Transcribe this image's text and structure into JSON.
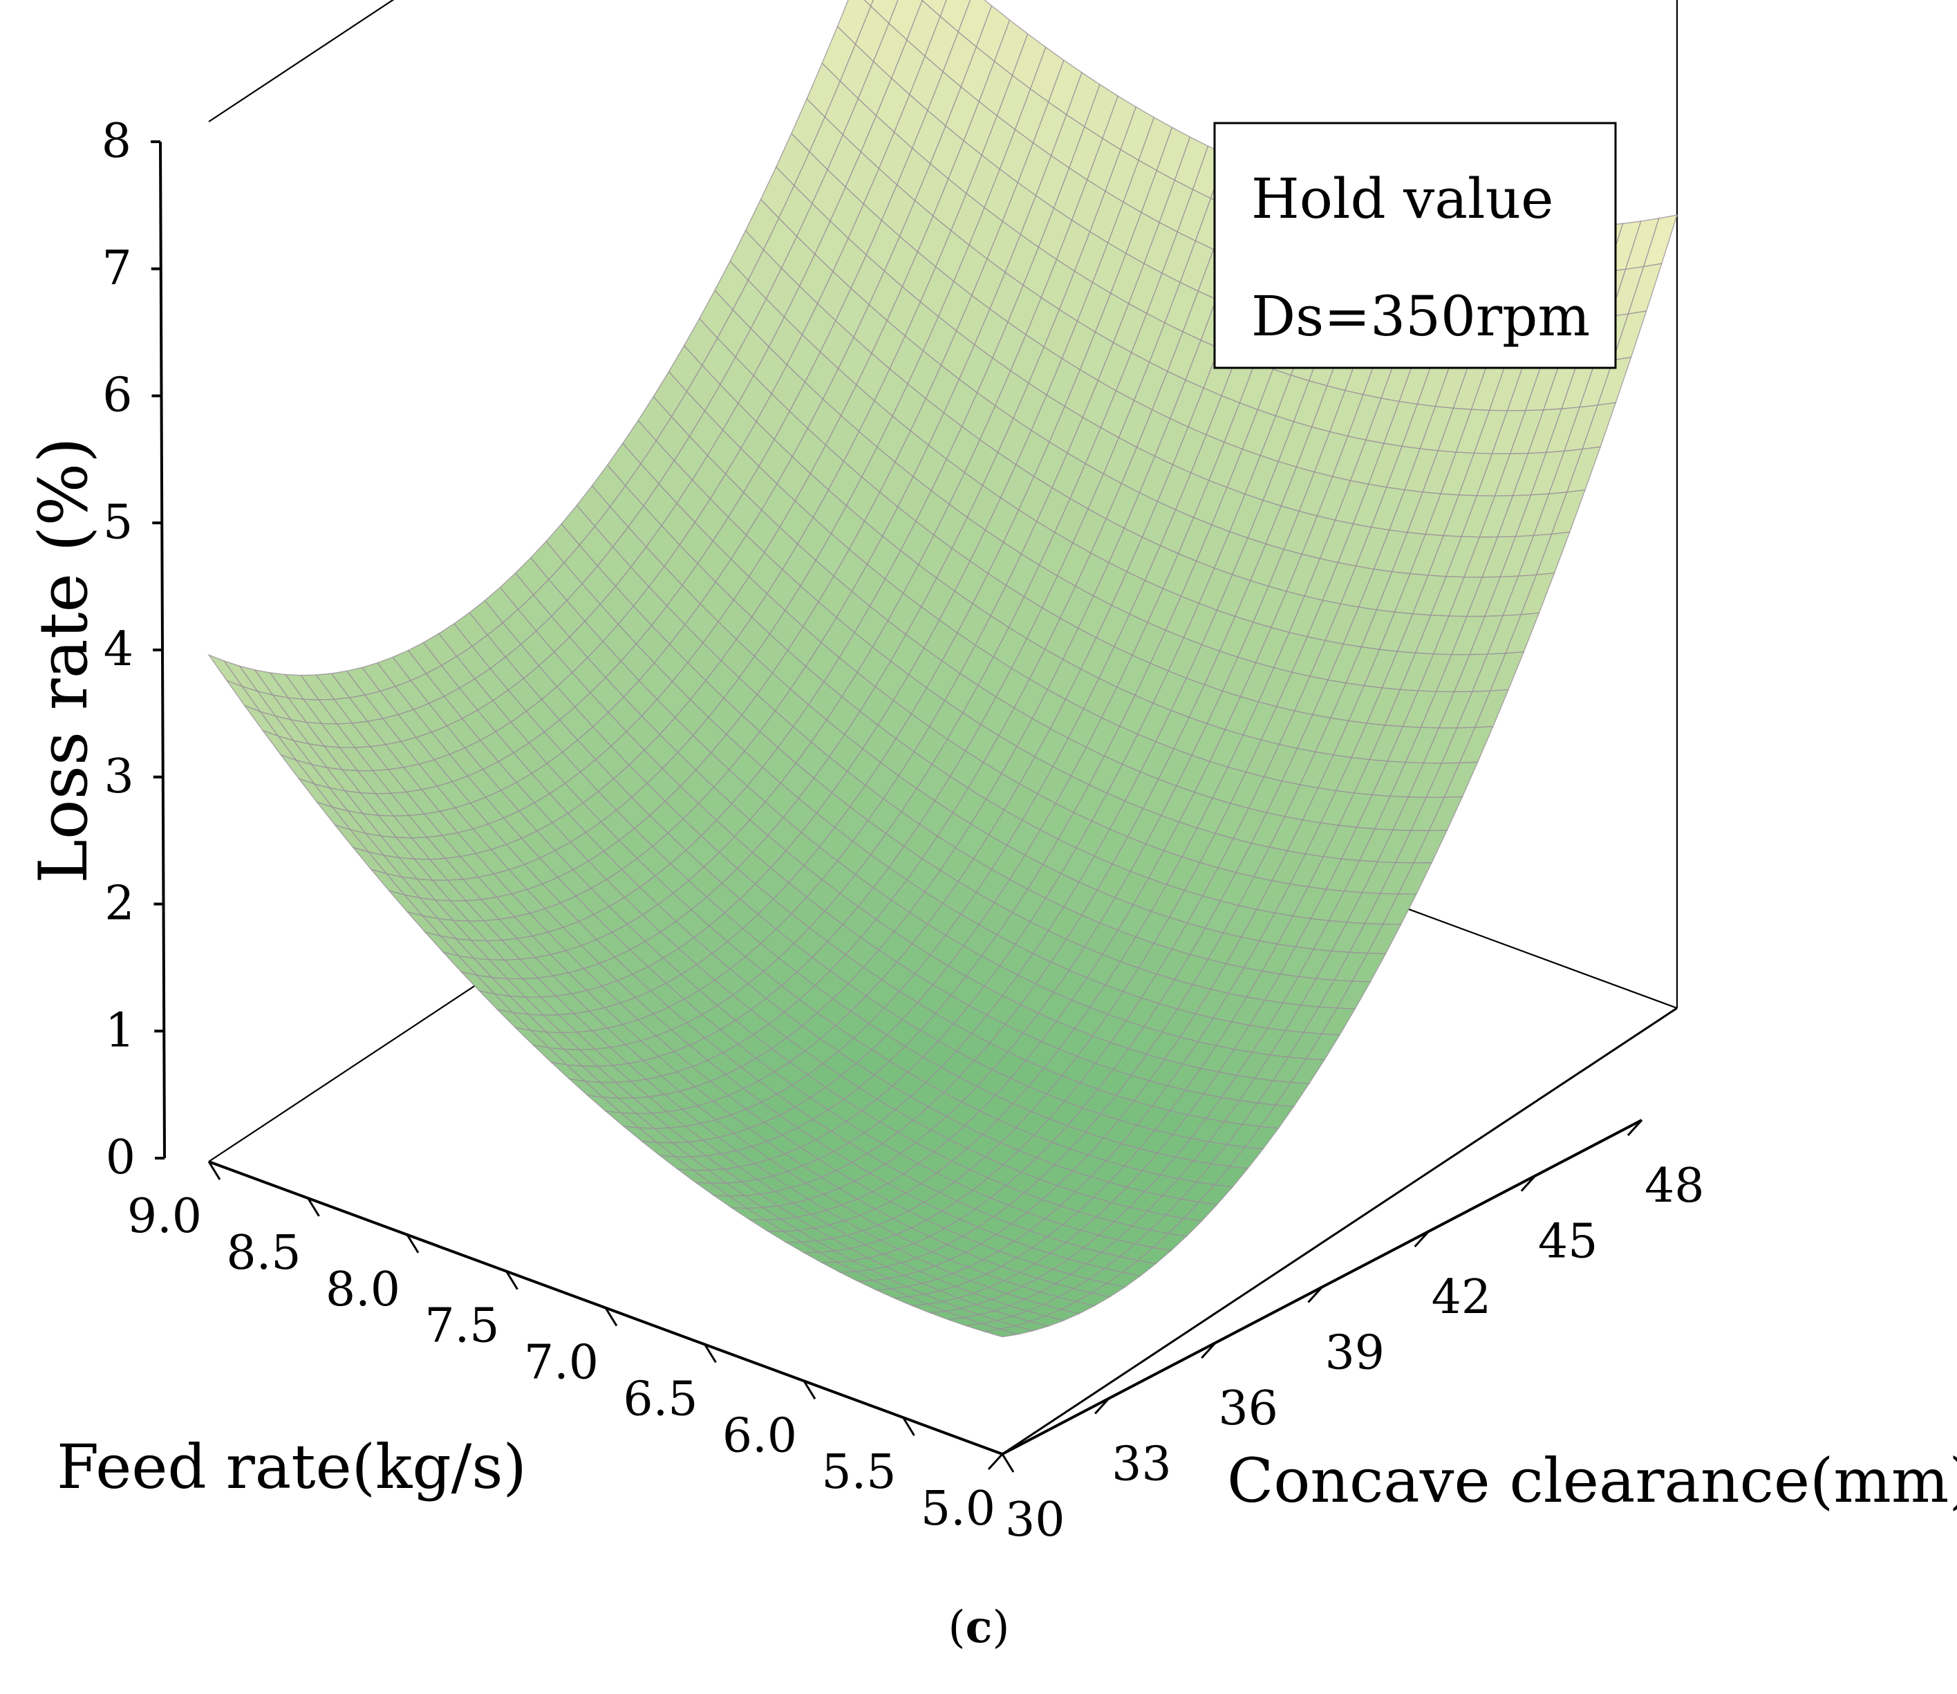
{
  "chart_data": {
    "type": "surface3d",
    "title": "",
    "legend": {
      "lines": [
        "Hold value",
        "Ds=350rpm"
      ],
      "placement": "top-right"
    },
    "caption": {
      "open": "(",
      "letter": "c",
      "close": ")"
    },
    "x_axis": {
      "label": "Feed rate(kg/s)",
      "ticks": [
        "9.0",
        "8.5",
        "8.0",
        "7.5",
        "7.0",
        "6.5",
        "6.0",
        "5.5",
        "5.0"
      ],
      "range": [
        5.0,
        9.0
      ]
    },
    "y_axis": {
      "label": "Concave clearance(mm)",
      "ticks": [
        "30",
        "33",
        "36",
        "39",
        "42",
        "45",
        "48"
      ],
      "range": [
        30,
        48
      ]
    },
    "z_axis": {
      "label": "Loss rate (%)",
      "ticks": [
        "0",
        "1",
        "2",
        "3",
        "4",
        "5",
        "6",
        "7",
        "8"
      ],
      "range": [
        0,
        8
      ]
    },
    "corner_values": [
      {
        "feed_rate": 9.0,
        "concave_clearance": 30,
        "loss_rate": 3.9
      },
      {
        "feed_rate": 5.0,
        "concave_clearance": 30,
        "loss_rate": 0.9
      },
      {
        "feed_rate": 5.0,
        "concave_clearance": 48,
        "loss_rate": 6.1
      },
      {
        "feed_rate": 9.0,
        "concave_clearance": 48,
        "loss_rate": 6.2
      }
    ],
    "minimum": {
      "feed_rate": 6.5,
      "concave_clearance": 37,
      "loss_rate": 0.9
    },
    "grid": true,
    "colormap": [
      "#7bbf7f",
      "#f0efbd"
    ]
  }
}
